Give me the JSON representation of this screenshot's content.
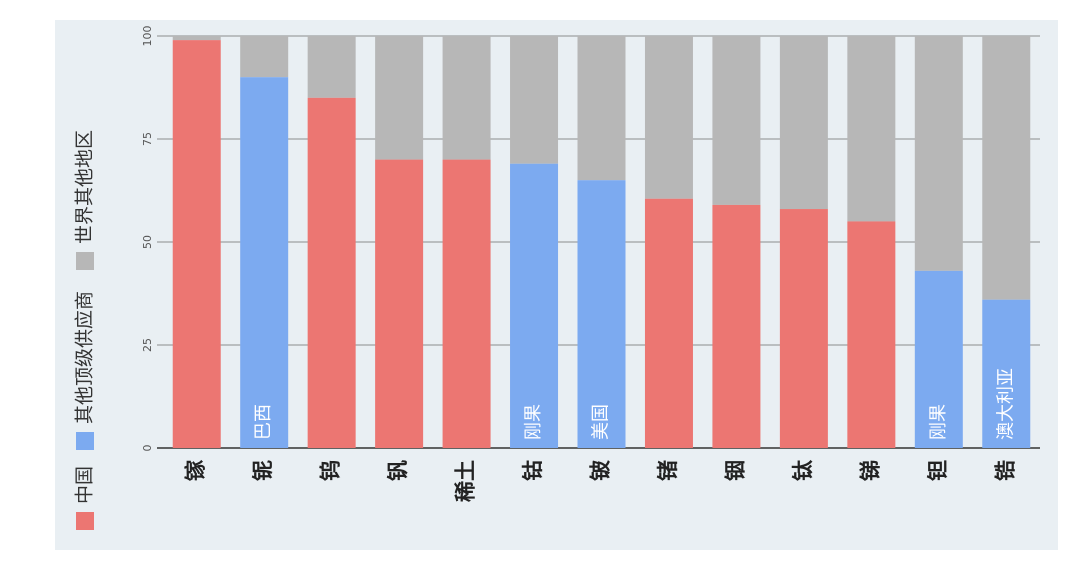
{
  "colors": {
    "china": "#ec7672",
    "other_top": "#7caaf0",
    "rest_of_world": "#b7b7b7",
    "panel_bg": "#e9eff3"
  },
  "chart_data": {
    "type": "bar",
    "stacked": true,
    "orientation": "vertical",
    "title": "",
    "xlabel": "",
    "ylabel": "",
    "ylim": [
      0,
      100
    ],
    "yticks": [
      "0",
      "25",
      "50",
      "75",
      "100"
    ],
    "grid": true,
    "legend_position": "left",
    "legend": [
      "中国",
      "其他顶级供应商",
      "世界其他地区"
    ],
    "categories": [
      "镓",
      "铌",
      "钨",
      "钒",
      "稀土",
      "钴",
      "铍",
      "锗",
      "铟",
      "钛",
      "锑",
      "钽",
      "锆"
    ],
    "top_supplier": [
      "中国",
      "巴西",
      "中国",
      "中国",
      "中国",
      "刚果",
      "美国",
      "中国",
      "中国",
      "中国",
      "中国",
      "刚果",
      "澳大利亚"
    ],
    "bar_labels": [
      "",
      "巴西",
      "",
      "",
      "",
      "刚果",
      "美国",
      "",
      "",
      "",
      "",
      "刚果",
      "澳大利亚"
    ],
    "series": [
      {
        "name": "顶级供应商",
        "values": [
          99,
          90,
          85,
          70,
          70,
          69,
          65,
          60.5,
          59,
          58,
          55,
          43,
          36
        ]
      },
      {
        "name": "世界其他地区",
        "values": [
          1,
          10,
          15,
          30,
          30,
          31,
          35,
          39.5,
          41,
          42,
          45,
          57,
          64
        ]
      }
    ]
  }
}
